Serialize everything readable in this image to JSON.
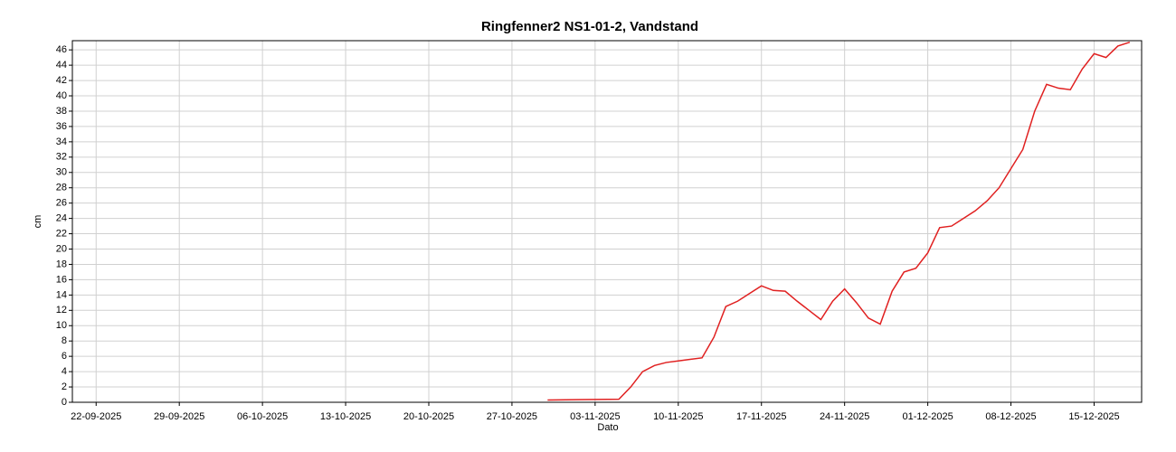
{
  "chart_data": {
    "type": "line",
    "title": "Ringfenner2 NS1-01-2, Vandstand",
    "x_label": "Dato",
    "y_label": "cm",
    "x": [
      "2025-10-30",
      "2025-11-05",
      "2025-11-06",
      "2025-11-07",
      "2025-11-08",
      "2025-11-09",
      "2025-11-10",
      "2025-11-11",
      "2025-11-12",
      "2025-11-13",
      "2025-11-14",
      "2025-11-15",
      "2025-11-16",
      "2025-11-17",
      "2025-11-18",
      "2025-11-19",
      "2025-11-20",
      "2025-11-21",
      "2025-11-22",
      "2025-11-23",
      "2025-11-24",
      "2025-11-25",
      "2025-11-26",
      "2025-11-27",
      "2025-11-28",
      "2025-11-29",
      "2025-11-30",
      "2025-12-01",
      "2025-12-02",
      "2025-12-03",
      "2025-12-04",
      "2025-12-05",
      "2025-12-06",
      "2025-12-07",
      "2025-12-08",
      "2025-12-09",
      "2025-12-10",
      "2025-12-11",
      "2025-12-12",
      "2025-12-13",
      "2025-12-14",
      "2025-12-15",
      "2025-12-16",
      "2025-12-17",
      "2025-12-18"
    ],
    "series": [
      {
        "name": "Vandstand",
        "color": "#e02020",
        "values": [
          0.3,
          0.4,
          2,
          4,
          4.8,
          5.2,
          5.4,
          5.6,
          5.8,
          8.5,
          12.5,
          13.2,
          14.2,
          15.2,
          14.6,
          14.5,
          13.2,
          12,
          10.8,
          13.2,
          14.8,
          13,
          11,
          10.2,
          14.5,
          17,
          17.5,
          19.5,
          22.8,
          23,
          24,
          25,
          26.3,
          28,
          30.5,
          33,
          38,
          41.5,
          41,
          40.8,
          43.5,
          45.5,
          45,
          46.5,
          47
        ]
      }
    ],
    "xlim": [
      "2025-09-20",
      "2025-12-19"
    ],
    "xticks": [
      {
        "value": "2025-09-22",
        "label": "22-09-2025"
      },
      {
        "value": "2025-09-29",
        "label": "29-09-2025"
      },
      {
        "value": "2025-10-06",
        "label": "06-10-2025"
      },
      {
        "value": "2025-10-13",
        "label": "13-10-2025"
      },
      {
        "value": "2025-10-20",
        "label": "20-10-2025"
      },
      {
        "value": "2025-10-27",
        "label": "27-10-2025"
      },
      {
        "value": "2025-11-03",
        "label": "03-11-2025"
      },
      {
        "value": "2025-11-10",
        "label": "10-11-2025"
      },
      {
        "value": "2025-11-17",
        "label": "17-11-2025"
      },
      {
        "value": "2025-11-24",
        "label": "24-11-2025"
      },
      {
        "value": "2025-12-01",
        "label": "01-12-2025"
      },
      {
        "value": "2025-12-08",
        "label": "08-12-2025"
      },
      {
        "value": "2025-12-15",
        "label": "15-12-2025"
      }
    ],
    "ylim": [
      0,
      47.2
    ],
    "yticks": [
      0,
      2,
      4,
      6,
      8,
      10,
      12,
      14,
      16,
      18,
      20,
      22,
      24,
      26,
      28,
      30,
      32,
      34,
      36,
      38,
      40,
      42,
      44,
      46
    ],
    "grid": true
  }
}
